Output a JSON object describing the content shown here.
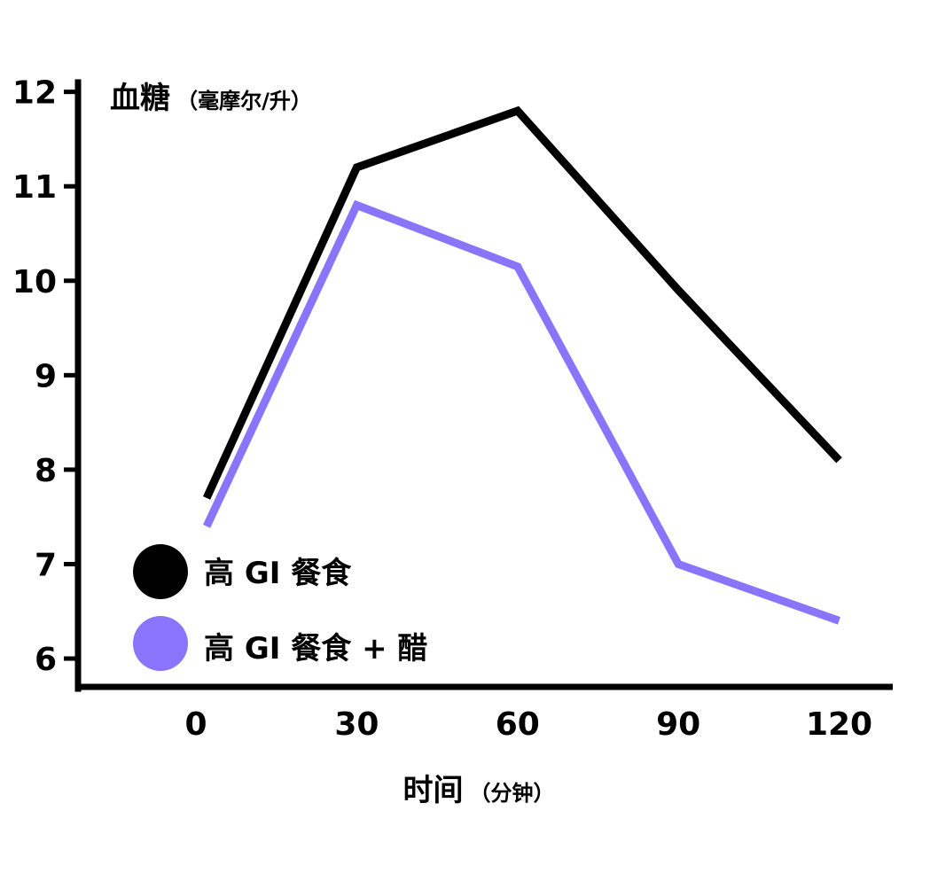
{
  "chart_data": {
    "type": "line",
    "ylabel": "血糖",
    "ylabel_unit": "（毫摩尔/升）",
    "xlabel": "时间",
    "xlabel_unit": "（分钟）",
    "x": [
      0,
      30,
      60,
      90,
      120
    ],
    "x_tick_labels": [
      "0",
      "30",
      "60",
      "90",
      "120"
    ],
    "y_ticks": [
      6,
      7,
      8,
      9,
      10,
      11,
      12
    ],
    "y_tick_labels": [
      "6",
      "7",
      "8",
      "9",
      "10",
      "11",
      "12"
    ],
    "xlim": [
      -22,
      130
    ],
    "ylim": [
      5.7,
      12.1
    ],
    "grid": false,
    "legend_position": "bottom-left",
    "series": [
      {
        "name": "高 GI 餐食",
        "color": "#000000",
        "points": [
          [
            2,
            7.7
          ],
          [
            30,
            11.2
          ],
          [
            60,
            11.8
          ],
          [
            90,
            9.9
          ],
          [
            120,
            8.1
          ]
        ]
      },
      {
        "name": "高 GI 餐食 + 醋",
        "color": "#8a74fc",
        "points": [
          [
            2,
            7.4
          ],
          [
            30,
            10.8
          ],
          [
            60,
            10.15
          ],
          [
            90,
            7.0
          ],
          [
            120,
            6.4
          ]
        ]
      }
    ]
  }
}
